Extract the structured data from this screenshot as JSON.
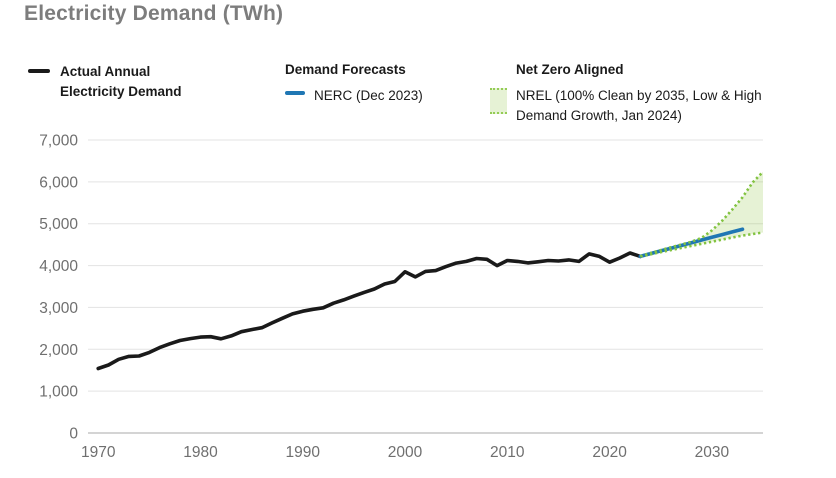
{
  "page": {
    "title": "Electricity Demand (TWh)"
  },
  "legend": {
    "actual": {
      "label": "Actual Annual\nElectricity Demand"
    },
    "forecasts": {
      "header": "Demand Forecasts",
      "nerc_label": "NERC (Dec 2023)"
    },
    "net_zero": {
      "header": "Net Zero Aligned",
      "nrel_label": "NREL (100% Clean by 2035, Low & High\nDemand Growth, Jan 2024)"
    }
  },
  "colors": {
    "actual_line": "#1a1a1a",
    "nerc_line": "#1f77b4",
    "nrel_dots": "#82c341",
    "nrel_fill": "#8dc63f",
    "grid": "#e3e3e3",
    "axis_zero": "#a8a8a8",
    "tick_text": "#6f6f6f",
    "title_text": "#7d7d7d"
  },
  "chart_data": {
    "type": "line",
    "title": "Electricity Demand (TWh)",
    "xlabel": "",
    "ylabel": "TWh",
    "xlim": [
      1969,
      2035
    ],
    "ylim": [
      0,
      7000
    ],
    "grid": "horizontal",
    "legend_position": "top",
    "yticks": {
      "values": [
        0,
        1000,
        2000,
        3000,
        4000,
        5000,
        6000,
        7000
      ],
      "labels": [
        "0",
        "1,000",
        "2,000",
        "3,000",
        "4,000",
        "5,000",
        "6,000",
        "7,000"
      ]
    },
    "xticks": {
      "values": [
        1970,
        1980,
        1990,
        2000,
        2010,
        2020,
        2030
      ],
      "labels": [
        "1970",
        "1980",
        "1990",
        "2000",
        "2010",
        "2020",
        "2030"
      ]
    },
    "band": {
      "upper": "nrel_high",
      "lower": "nrel_low",
      "fill_opacity": 0.22
    },
    "series": [
      {
        "id": "actual",
        "name": "Actual Annual Electricity Demand",
        "style": "solid",
        "color_key": "actual_line",
        "points": [
          [
            1970,
            1540
          ],
          [
            1971,
            1625
          ],
          [
            1972,
            1760
          ],
          [
            1973,
            1830
          ],
          [
            1974,
            1840
          ],
          [
            1975,
            1925
          ],
          [
            1976,
            2040
          ],
          [
            1977,
            2130
          ],
          [
            1978,
            2210
          ],
          [
            1979,
            2255
          ],
          [
            1980,
            2290
          ],
          [
            1981,
            2300
          ],
          [
            1982,
            2250
          ],
          [
            1983,
            2320
          ],
          [
            1984,
            2420
          ],
          [
            1985,
            2470
          ],
          [
            1986,
            2515
          ],
          [
            1987,
            2630
          ],
          [
            1988,
            2740
          ],
          [
            1989,
            2845
          ],
          [
            1990,
            2910
          ],
          [
            1991,
            2955
          ],
          [
            1992,
            2990
          ],
          [
            1993,
            3100
          ],
          [
            1994,
            3180
          ],
          [
            1995,
            3270
          ],
          [
            1996,
            3360
          ],
          [
            1997,
            3440
          ],
          [
            1998,
            3560
          ],
          [
            1999,
            3620
          ],
          [
            2000,
            3850
          ],
          [
            2001,
            3730
          ],
          [
            2002,
            3860
          ],
          [
            2003,
            3880
          ],
          [
            2004,
            3975
          ],
          [
            2005,
            4060
          ],
          [
            2006,
            4100
          ],
          [
            2007,
            4170
          ],
          [
            2008,
            4150
          ],
          [
            2009,
            4000
          ],
          [
            2010,
            4120
          ],
          [
            2011,
            4100
          ],
          [
            2012,
            4065
          ],
          [
            2013,
            4090
          ],
          [
            2014,
            4120
          ],
          [
            2015,
            4110
          ],
          [
            2016,
            4135
          ],
          [
            2017,
            4100
          ],
          [
            2018,
            4280
          ],
          [
            2019,
            4220
          ],
          [
            2020,
            4080
          ],
          [
            2021,
            4180
          ],
          [
            2022,
            4300
          ],
          [
            2023,
            4220
          ]
        ]
      },
      {
        "id": "nerc",
        "name": "NERC (Dec 2023)",
        "style": "solid",
        "color_key": "nerc_line",
        "points": [
          [
            2023,
            4220
          ],
          [
            2024,
            4285
          ],
          [
            2025,
            4350
          ],
          [
            2026,
            4415
          ],
          [
            2027,
            4480
          ],
          [
            2028,
            4545
          ],
          [
            2029,
            4610
          ],
          [
            2030,
            4675
          ],
          [
            2031,
            4740
          ],
          [
            2032,
            4805
          ],
          [
            2033,
            4870
          ]
        ]
      },
      {
        "id": "nrel_high",
        "name": "NREL 100% Clean by 2035, High Demand Growth (Jan 2024)",
        "style": "dotted",
        "color_key": "nrel_dots",
        "points": [
          [
            2023,
            4220
          ],
          [
            2024,
            4300
          ],
          [
            2025,
            4370
          ],
          [
            2026,
            4440
          ],
          [
            2027,
            4500
          ],
          [
            2028,
            4570
          ],
          [
            2029,
            4660
          ],
          [
            2030,
            4840
          ],
          [
            2031,
            5070
          ],
          [
            2032,
            5340
          ],
          [
            2033,
            5630
          ],
          [
            2034,
            5990
          ],
          [
            2035,
            6240
          ]
        ]
      },
      {
        "id": "nrel_low",
        "name": "NREL 100% Clean by 2035, Low Demand Growth (Jan 2024)",
        "style": "dotted",
        "color_key": "nrel_dots",
        "points": [
          [
            2023,
            4220
          ],
          [
            2024,
            4270
          ],
          [
            2025,
            4320
          ],
          [
            2026,
            4370
          ],
          [
            2027,
            4420
          ],
          [
            2028,
            4470
          ],
          [
            2029,
            4520
          ],
          [
            2030,
            4570
          ],
          [
            2031,
            4620
          ],
          [
            2032,
            4670
          ],
          [
            2033,
            4715
          ],
          [
            2034,
            4755
          ],
          [
            2035,
            4790
          ]
        ]
      }
    ]
  }
}
